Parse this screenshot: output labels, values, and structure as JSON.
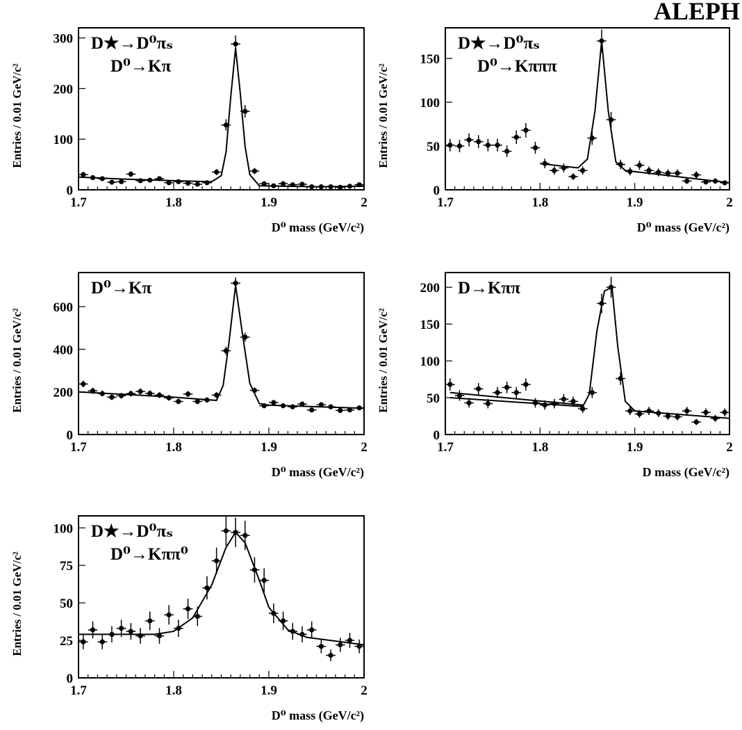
{
  "experiment_label": "ALEPH",
  "chart_data": [
    {
      "type": "scatter",
      "panel": "top-left",
      "annotation": [
        "D★→D⁰πₛ",
        "D⁰→Kπ"
      ],
      "xlabel": "D⁰ mass (GeV/c²)",
      "ylabel": "Entries / 0.01 GeV/c²",
      "xlim": [
        1.7,
        2.0
      ],
      "ylim": [
        0,
        320
      ],
      "xticks": [
        "1.7",
        "1.8",
        "1.9",
        "2"
      ],
      "yticks": [
        "0",
        "100",
        "200",
        "300"
      ],
      "ytick_values": [
        0,
        100,
        200,
        300
      ],
      "grid": false,
      "x": [
        1.705,
        1.715,
        1.725,
        1.735,
        1.745,
        1.755,
        1.765,
        1.775,
        1.785,
        1.795,
        1.805,
        1.815,
        1.825,
        1.835,
        1.845,
        1.855,
        1.865,
        1.875,
        1.885,
        1.895,
        1.905,
        1.915,
        1.925,
        1.935,
        1.945,
        1.955,
        1.965,
        1.975,
        1.985,
        1.995
      ],
      "y": [
        30,
        24,
        22,
        15,
        16,
        31,
        18,
        19,
        22,
        14,
        16,
        13,
        11,
        14,
        35,
        128,
        288,
        155,
        37,
        12,
        8,
        12,
        10,
        11,
        6,
        6,
        6,
        5,
        7,
        10
      ],
      "fit": [
        [
          1.7,
          25
        ],
        [
          1.75,
          21
        ],
        [
          1.8,
          18
        ],
        [
          1.84,
          16
        ],
        [
          1.85,
          28
        ],
        [
          1.855,
          75
        ],
        [
          1.86,
          185
        ],
        [
          1.865,
          280
        ],
        [
          1.87,
          190
        ],
        [
          1.875,
          85
        ],
        [
          1.88,
          30
        ],
        [
          1.89,
          8
        ],
        [
          1.95,
          6
        ],
        [
          2.0,
          7
        ]
      ]
    },
    {
      "type": "scatter",
      "panel": "top-right",
      "annotation": [
        "D★→D⁰πₛ",
        "D⁰→Kπππ"
      ],
      "xlabel": "D⁰ mass (GeV/c²)",
      "ylabel": "Entries / 0.01 GeV/c²",
      "xlim": [
        1.7,
        2.0
      ],
      "ylim": [
        0,
        185
      ],
      "xticks": [
        "1.7",
        "1.8",
        "1.9",
        "2"
      ],
      "yticks": [
        "0",
        "50",
        "100",
        "150"
      ],
      "ytick_values": [
        0,
        50,
        100,
        150
      ],
      "grid": false,
      "x": [
        1.705,
        1.715,
        1.725,
        1.735,
        1.745,
        1.755,
        1.765,
        1.775,
        1.785,
        1.795,
        1.805,
        1.815,
        1.825,
        1.835,
        1.845,
        1.855,
        1.865,
        1.875,
        1.885,
        1.895,
        1.905,
        1.915,
        1.925,
        1.935,
        1.945,
        1.955,
        1.965,
        1.975,
        1.985,
        1.995
      ],
      "y": [
        51,
        50,
        57,
        55,
        51,
        51,
        44,
        60,
        68,
        48,
        30,
        22,
        25,
        15,
        22,
        59,
        170,
        80,
        29,
        21,
        28,
        22,
        20,
        19,
        19,
        10,
        17,
        9,
        10,
        8
      ],
      "fit": [
        [
          1.8,
          30
        ],
        [
          1.84,
          25
        ],
        [
          1.85,
          35
        ],
        [
          1.858,
          90
        ],
        [
          1.865,
          170
        ],
        [
          1.872,
          90
        ],
        [
          1.88,
          32
        ],
        [
          1.89,
          22
        ],
        [
          2.0,
          8
        ]
      ]
    },
    {
      "type": "scatter",
      "panel": "middle-left",
      "annotation": [
        "D⁰→Kπ"
      ],
      "xlabel": "D⁰ mass (GeV/c²)",
      "ylabel": "Entries / 0.01 GeV/c²",
      "xlim": [
        1.7,
        2.0
      ],
      "ylim": [
        0,
        760
      ],
      "xticks": [
        "1.7",
        "1.8",
        "1.9",
        "2"
      ],
      "yticks": [
        "0",
        "200",
        "400",
        "600"
      ],
      "ytick_values": [
        0,
        200,
        400,
        600
      ],
      "grid": false,
      "x": [
        1.705,
        1.715,
        1.725,
        1.735,
        1.745,
        1.755,
        1.765,
        1.775,
        1.785,
        1.795,
        1.805,
        1.815,
        1.825,
        1.835,
        1.845,
        1.855,
        1.865,
        1.875,
        1.885,
        1.895,
        1.905,
        1.915,
        1.925,
        1.935,
        1.945,
        1.955,
        1.965,
        1.975,
        1.985,
        1.995
      ],
      "y": [
        237,
        205,
        192,
        175,
        182,
        192,
        202,
        193,
        185,
        172,
        155,
        190,
        155,
        162,
        185,
        393,
        710,
        457,
        207,
        135,
        150,
        135,
        130,
        143,
        115,
        140,
        130,
        113,
        115,
        125
      ],
      "fit": [
        [
          1.7,
          200
        ],
        [
          1.75,
          188
        ],
        [
          1.8,
          175
        ],
        [
          1.845,
          160
        ],
        [
          1.852,
          230
        ],
        [
          1.858,
          430
        ],
        [
          1.865,
          700
        ],
        [
          1.872,
          480
        ],
        [
          1.88,
          240
        ],
        [
          1.89,
          145
        ],
        [
          1.9,
          138
        ],
        [
          2.0,
          123
        ]
      ]
    },
    {
      "type": "scatter",
      "panel": "middle-right",
      "annotation": [
        "D→Kππ"
      ],
      "xlabel": "D mass (GeV/c²)",
      "ylabel": "Entries / 0.01 GeV/c²",
      "xlim": [
        1.7,
        2.0
      ],
      "ylim": [
        0,
        220
      ],
      "xticks": [
        "1.7",
        "1.8",
        "1.9",
        "2"
      ],
      "yticks": [
        "0",
        "50",
        "100",
        "150",
        "200"
      ],
      "ytick_values": [
        0,
        50,
        100,
        150,
        200
      ],
      "grid": false,
      "x": [
        1.705,
        1.715,
        1.725,
        1.735,
        1.745,
        1.755,
        1.765,
        1.775,
        1.785,
        1.795,
        1.805,
        1.815,
        1.825,
        1.835,
        1.845,
        1.855,
        1.865,
        1.875,
        1.885,
        1.895,
        1.905,
        1.915,
        1.925,
        1.935,
        1.945,
        1.955,
        1.965,
        1.975,
        1.985,
        1.995
      ],
      "y": [
        68,
        53,
        43,
        62,
        42,
        57,
        64,
        57,
        68,
        43,
        40,
        42,
        48,
        45,
        35,
        57,
        178,
        200,
        76,
        32,
        28,
        32,
        29,
        25,
        24,
        32,
        17,
        30,
        22,
        30
      ],
      "fit": [
        [
          1.705,
          57
        ],
        [
          1.845,
          40
        ],
        [
          1.705,
          50
        ],
        [
          1.845,
          38
        ],
        [
          1.852,
          55
        ],
        [
          1.86,
          140
        ],
        [
          1.868,
          195
        ],
        [
          1.876,
          200
        ],
        [
          1.882,
          120
        ],
        [
          1.89,
          45
        ],
        [
          1.9,
          32
        ],
        [
          2.0,
          22
        ]
      ],
      "fit_segments": [
        [
          [
            1.705,
            57
          ],
          [
            1.845,
            40
          ]
        ],
        [
          [
            1.705,
            50
          ],
          [
            1.845,
            38
          ],
          [
            1.852,
            55
          ],
          [
            1.86,
            140
          ],
          [
            1.868,
            195
          ],
          [
            1.876,
            200
          ],
          [
            1.882,
            120
          ],
          [
            1.89,
            45
          ],
          [
            1.9,
            32
          ],
          [
            2.0,
            22
          ]
        ]
      ]
    },
    {
      "type": "scatter",
      "panel": "bottom-left",
      "annotation": [
        "D★→D⁰πₛ",
        "D⁰→Kππ⁰"
      ],
      "xlabel": "D⁰ mass (GeV/c²)",
      "ylabel": "Entries / 0.01 GeV/c²",
      "xlim": [
        1.7,
        2.0
      ],
      "ylim": [
        0,
        108
      ],
      "xticks": [
        "1.7",
        "1.8",
        "1.9",
        "2"
      ],
      "yticks": [
        "0",
        "25",
        "50",
        "75",
        "100"
      ],
      "ytick_values": [
        0,
        25,
        50,
        75,
        100
      ],
      "grid": false,
      "x": [
        1.705,
        1.715,
        1.725,
        1.735,
        1.745,
        1.755,
        1.765,
        1.775,
        1.785,
        1.795,
        1.805,
        1.815,
        1.825,
        1.835,
        1.845,
        1.855,
        1.865,
        1.875,
        1.885,
        1.895,
        1.905,
        1.915,
        1.925,
        1.935,
        1.945,
        1.955,
        1.965,
        1.975,
        1.985,
        1.995
      ],
      "y": [
        24,
        32,
        24,
        29,
        33,
        31,
        28,
        38,
        28,
        42,
        33,
        46,
        41,
        60,
        78,
        98,
        97,
        95,
        72,
        65,
        43,
        38,
        31,
        29,
        32,
        21,
        15,
        22,
        25,
        21
      ],
      "fit": [
        [
          1.7,
          29
        ],
        [
          1.78,
          29
        ],
        [
          1.8,
          31
        ],
        [
          1.82,
          40
        ],
        [
          1.84,
          62
        ],
        [
          1.855,
          87
        ],
        [
          1.865,
          97
        ],
        [
          1.875,
          90
        ],
        [
          1.89,
          65
        ],
        [
          1.9,
          47
        ],
        [
          1.92,
          32
        ],
        [
          1.94,
          27
        ],
        [
          2.0,
          22
        ]
      ]
    }
  ]
}
